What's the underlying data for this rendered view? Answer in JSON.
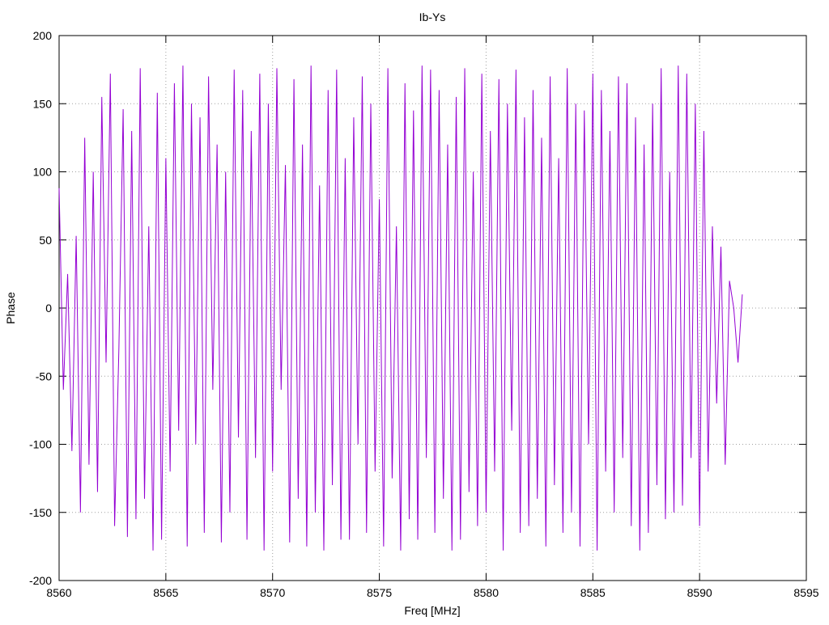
{
  "chart_data": {
    "type": "line",
    "title": "Ib-Ys",
    "xlabel": "Freq [MHz]",
    "ylabel": "Phase",
    "xlim": [
      8560,
      8595
    ],
    "xticks": [
      8560,
      8565,
      8570,
      8575,
      8580,
      8585,
      8590,
      8595
    ],
    "ylim": [
      -200,
      200
    ],
    "yticks": [
      -200,
      -150,
      -100,
      -50,
      0,
      50,
      100,
      150,
      200
    ],
    "grid": true,
    "x": [
      8560,
      8560.2,
      8560.4,
      8560.6,
      8560.8,
      8561,
      8561.2,
      8561.4,
      8561.6,
      8561.8,
      8562,
      8562.2,
      8562.4,
      8562.6,
      8562.8,
      8563,
      8563.2,
      8563.4,
      8563.6,
      8563.8,
      8564,
      8564.2,
      8564.4,
      8564.6,
      8564.8,
      8565,
      8565.2,
      8565.4,
      8565.6,
      8565.8,
      8566,
      8566.2,
      8566.4,
      8566.6,
      8566.8,
      8567,
      8567.2,
      8567.4,
      8567.6,
      8567.8,
      8568,
      8568.2,
      8568.4,
      8568.6,
      8568.8,
      8569,
      8569.2,
      8569.4,
      8569.6,
      8569.8,
      8570,
      8570.2,
      8570.4,
      8570.6,
      8570.8,
      8571,
      8571.2,
      8571.4,
      8571.6,
      8571.8,
      8572,
      8572.2,
      8572.4,
      8572.6,
      8572.8,
      8573,
      8573.2,
      8573.4,
      8573.6,
      8573.8,
      8574,
      8574.2,
      8574.4,
      8574.6,
      8574.8,
      8575,
      8575.2,
      8575.4,
      8575.6,
      8575.8,
      8576,
      8576.2,
      8576.4,
      8576.6,
      8576.8,
      8577,
      8577.2,
      8577.4,
      8577.6,
      8577.8,
      8578,
      8578.2,
      8578.4,
      8578.6,
      8578.8,
      8579,
      8579.2,
      8579.4,
      8579.6,
      8579.8,
      8580,
      8580.2,
      8580.4,
      8580.6,
      8580.8,
      8581,
      8581.2,
      8581.4,
      8581.6,
      8581.8,
      8582,
      8582.2,
      8582.4,
      8582.6,
      8582.8,
      8583,
      8583.2,
      8583.4,
      8583.6,
      8583.8,
      8584,
      8584.2,
      8584.4,
      8584.6,
      8584.8,
      8585,
      8585.2,
      8585.4,
      8585.6,
      8585.8,
      8586,
      8586.2,
      8586.4,
      8586.6,
      8586.8,
      8587,
      8587.2,
      8587.4,
      8587.6,
      8587.8,
      8588,
      8588.2,
      8588.4,
      8588.6,
      8588.8,
      8589,
      8589.2,
      8589.4,
      8589.6,
      8589.8,
      8590,
      8590.2,
      8590.4,
      8590.6,
      8590.8,
      8591,
      8591.2,
      8591.4,
      8591.6,
      8591.8,
      8592
    ],
    "series": [
      {
        "color": "#9400d3",
        "values": [
          88,
          -60,
          25,
          -105,
          53,
          -150,
          125,
          -115,
          100,
          -135,
          155,
          -40,
          172,
          -160,
          -30,
          146,
          -168,
          130,
          -155,
          176,
          -140,
          60,
          -178,
          158,
          -170,
          110,
          -120,
          165,
          -90,
          178,
          -175,
          150,
          -100,
          140,
          -165,
          170,
          -60,
          120,
          -172,
          100,
          -150,
          175,
          -95,
          160,
          -170,
          130,
          -110,
          172,
          -178,
          150,
          -120,
          176,
          -60,
          105,
          -172,
          168,
          -140,
          120,
          -175,
          178,
          -150,
          90,
          -178,
          160,
          -130,
          175,
          -170,
          110,
          -170,
          140,
          -100,
          170,
          -165,
          150,
          -120,
          80,
          -175,
          176,
          -125,
          60,
          -178,
          165,
          -155,
          145,
          -170,
          178,
          -110,
          175,
          -165,
          160,
          -140,
          120,
          -178,
          155,
          -170,
          176,
          -135,
          100,
          -160,
          172,
          -150,
          130,
          -120,
          168,
          -178,
          150,
          -90,
          175,
          -165,
          140,
          -160,
          160,
          -140,
          125,
          -175,
          170,
          -130,
          110,
          -165,
          176,
          -150,
          150,
          -175,
          145,
          -100,
          172,
          -178,
          160,
          -120,
          130,
          -150,
          170,
          -110,
          165,
          -160,
          140,
          -178,
          120,
          -165,
          150,
          -130,
          176,
          -155,
          100,
          -150,
          178,
          -145,
          172,
          -110,
          150,
          -160,
          130,
          -120,
          60,
          -70,
          45,
          -115,
          20,
          0,
          -40,
          10
        ]
      }
    ]
  }
}
